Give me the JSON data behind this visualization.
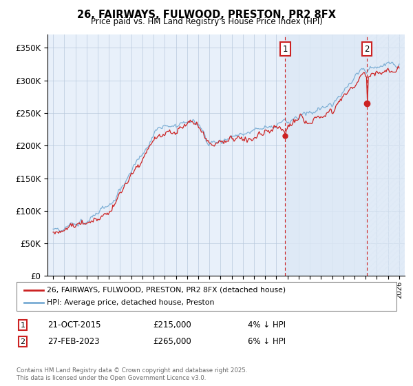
{
  "title": "26, FAIRWAYS, FULWOOD, PRESTON, PR2 8FX",
  "subtitle": "Price paid vs. HM Land Registry's House Price Index (HPI)",
  "ylim": [
    0,
    370000
  ],
  "yticks": [
    0,
    50000,
    100000,
    150000,
    200000,
    250000,
    300000,
    350000
  ],
  "hpi_color": "#7aadd4",
  "price_color": "#cc2222",
  "shade_color": "#dce8f5",
  "marker1_date": 2015.79,
  "marker2_date": 2023.12,
  "sale1_price_val": 215000,
  "sale2_price_val": 265000,
  "sale1_date": "21-OCT-2015",
  "sale1_price": "£215,000",
  "sale1_pct": "4% ↓ HPI",
  "sale2_date": "27-FEB-2023",
  "sale2_price": "£265,000",
  "sale2_pct": "6% ↓ HPI",
  "legend_label1": "26, FAIRWAYS, FULWOOD, PRESTON, PR2 8FX (detached house)",
  "legend_label2": "HPI: Average price, detached house, Preston",
  "footnote": "Contains HM Land Registry data © Crown copyright and database right 2025.\nThis data is licensed under the Open Government Licence v3.0.",
  "background_color": "#ffffff",
  "plot_bg_color": "#e8f0fa"
}
